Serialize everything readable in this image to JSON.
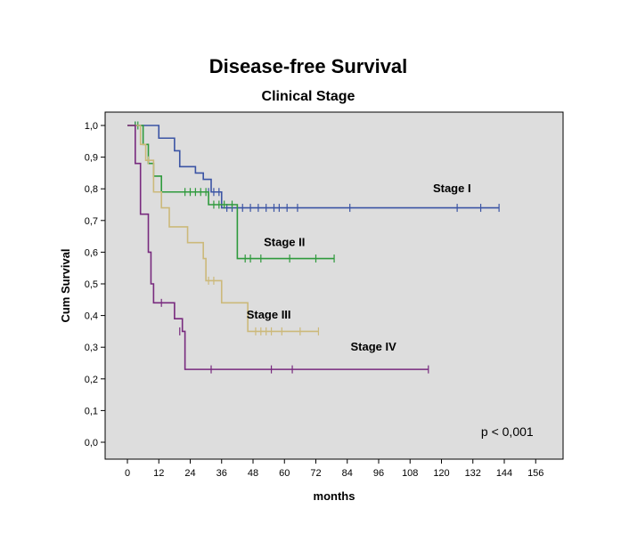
{
  "chart_data": {
    "type": "line",
    "subtype": "kaplan-meier step",
    "title": "Disease-free Survival",
    "subtitle": "Clinical Stage",
    "xlabel": "months",
    "ylabel": "Cum Survival",
    "xlim": [
      -6,
      162
    ],
    "ylim": [
      -0.05,
      1.05
    ],
    "xticks": [
      0,
      12,
      24,
      36,
      48,
      60,
      72,
      84,
      96,
      108,
      120,
      132,
      144,
      156
    ],
    "yticks": [
      0.0,
      0.1,
      0.2,
      0.3,
      0.4,
      0.5,
      0.6,
      0.7,
      0.8,
      0.9,
      1.0
    ],
    "ytick_labels": [
      "0,0",
      "0,1",
      "0,2",
      "0,3",
      "0,4",
      "0,5",
      "0,6",
      "0,7",
      "0,8",
      "0,9",
      "1,0"
    ],
    "annotation": "p < 0,001",
    "series": [
      {
        "name": "Stage I",
        "color": "#3b54a4",
        "steps": [
          [
            0,
            1.0
          ],
          [
            12,
            0.96
          ],
          [
            18,
            0.92
          ],
          [
            20,
            0.87
          ],
          [
            26,
            0.85
          ],
          [
            29,
            0.83
          ],
          [
            32,
            0.79
          ],
          [
            36,
            0.74
          ],
          [
            142,
            0.74
          ]
        ],
        "censored": [
          [
            3,
            1.0
          ],
          [
            31,
            0.79
          ],
          [
            33,
            0.79
          ],
          [
            35,
            0.79
          ],
          [
            38,
            0.74
          ],
          [
            40,
            0.74
          ],
          [
            44,
            0.74
          ],
          [
            47,
            0.74
          ],
          [
            50,
            0.74
          ],
          [
            53,
            0.74
          ],
          [
            56,
            0.74
          ],
          [
            58,
            0.74
          ],
          [
            61,
            0.74
          ],
          [
            65,
            0.74
          ],
          [
            85,
            0.74
          ],
          [
            126,
            0.74
          ],
          [
            135,
            0.74
          ],
          [
            142,
            0.74
          ]
        ]
      },
      {
        "name": "Stage II",
        "color": "#2e9a3c",
        "steps": [
          [
            0,
            1.0
          ],
          [
            6,
            0.94
          ],
          [
            8,
            0.88
          ],
          [
            10,
            0.84
          ],
          [
            13,
            0.79
          ],
          [
            31,
            0.75
          ],
          [
            42,
            0.58
          ],
          [
            79,
            0.58
          ]
        ],
        "censored": [
          [
            3,
            1.0
          ],
          [
            4,
            1.0
          ],
          [
            22,
            0.79
          ],
          [
            24,
            0.79
          ],
          [
            26,
            0.79
          ],
          [
            28,
            0.79
          ],
          [
            30,
            0.79
          ],
          [
            33,
            0.75
          ],
          [
            35,
            0.75
          ],
          [
            37,
            0.75
          ],
          [
            40,
            0.75
          ],
          [
            45,
            0.58
          ],
          [
            47,
            0.58
          ],
          [
            51,
            0.58
          ],
          [
            62,
            0.58
          ],
          [
            72,
            0.58
          ],
          [
            79,
            0.58
          ]
        ]
      },
      {
        "name": "Stage III",
        "color": "#ccb97a",
        "steps": [
          [
            0,
            1.0
          ],
          [
            5,
            0.94
          ],
          [
            7,
            0.89
          ],
          [
            10,
            0.79
          ],
          [
            13,
            0.74
          ],
          [
            16,
            0.68
          ],
          [
            23,
            0.63
          ],
          [
            29,
            0.58
          ],
          [
            30,
            0.51
          ],
          [
            36,
            0.44
          ],
          [
            46,
            0.35
          ],
          [
            73,
            0.35
          ]
        ],
        "censored": [
          [
            8,
            0.89
          ],
          [
            31,
            0.51
          ],
          [
            33,
            0.51
          ],
          [
            49,
            0.35
          ],
          [
            51,
            0.35
          ],
          [
            53,
            0.35
          ],
          [
            55,
            0.35
          ],
          [
            59,
            0.35
          ],
          [
            66,
            0.35
          ],
          [
            73,
            0.35
          ]
        ]
      },
      {
        "name": "Stage IV",
        "color": "#782a7e",
        "steps": [
          [
            0,
            1.0
          ],
          [
            3,
            0.88
          ],
          [
            5,
            0.72
          ],
          [
            8,
            0.6
          ],
          [
            9,
            0.5
          ],
          [
            10,
            0.44
          ],
          [
            18,
            0.39
          ],
          [
            21,
            0.35
          ],
          [
            22,
            0.23
          ],
          [
            115,
            0.23
          ]
        ],
        "censored": [
          [
            13,
            0.44
          ],
          [
            20,
            0.35
          ],
          [
            32,
            0.23
          ],
          [
            55,
            0.23
          ],
          [
            63,
            0.23
          ],
          [
            115,
            0.23
          ]
        ]
      }
    ],
    "series_label_anchors": [
      {
        "name": "Stage I",
        "x": 124,
        "y": 0.79
      },
      {
        "name": "Stage II",
        "x": 60,
        "y": 0.62
      },
      {
        "name": "Stage III",
        "x": 54,
        "y": 0.39
      },
      {
        "name": "Stage IV",
        "x": 94,
        "y": 0.29
      }
    ],
    "annotation_anchor": {
      "x": 149,
      "y": 0.02
    }
  }
}
